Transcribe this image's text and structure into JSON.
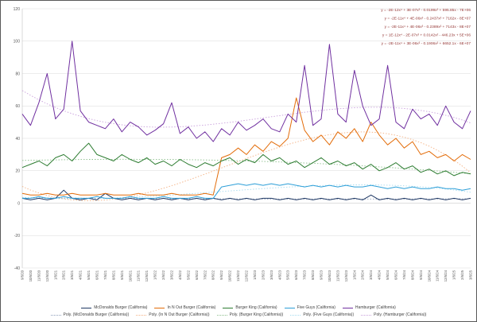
{
  "chart_data": {
    "type": "line",
    "title": "",
    "ylim": [
      -40,
      120
    ],
    "ytick_step": 20,
    "grid": true,
    "legend_position": "bottom",
    "equations_color": "#943634",
    "equations": [
      "y = -2E-12x⁴ + 3E-07x³ - 0.0199x² + 595.85x - 7E+06",
      "y = -2E-11x⁴ + 4E-06x³ - 0.2437x² + 7162x - 8E+07",
      "y = -2E-11x⁴ + 4E-06x³ - 0.2389x² + 7143x - 8E+07",
      "y = 1E-12x⁴ - 2E-07x³ + 0.0142x² - 446.23x + 5E+06",
      "y = -2E-11x⁴ + 3E-06x³ - 0.1906x² + 6652.1x - 6E+07"
    ],
    "categories": [
      "9/6/20",
      "10/6/20",
      "11/6/20",
      "12/6/20",
      "1/6/21",
      "2/6/21",
      "3/6/21",
      "4/6/21",
      "5/6/21",
      "6/6/21",
      "7/6/21",
      "8/6/21",
      "9/6/21",
      "10/6/21",
      "11/6/21",
      "12/6/21",
      "1/6/22",
      "2/6/22",
      "3/6/22",
      "4/6/22",
      "5/6/22",
      "6/6/22",
      "7/6/22",
      "8/6/22",
      "9/6/22",
      "10/6/22",
      "11/6/22",
      "12/6/22",
      "1/6/23",
      "2/6/23",
      "3/6/23",
      "4/6/23",
      "5/6/23",
      "6/6/23",
      "7/6/23",
      "8/6/23",
      "9/6/23",
      "10/6/23",
      "11/6/23",
      "12/6/23",
      "1/6/24",
      "2/6/24",
      "3/6/24",
      "4/6/24",
      "5/6/24",
      "6/6/24",
      "7/6/24",
      "8/6/24",
      "9/6/24",
      "10/6/24",
      "11/6/24",
      "12/6/24",
      "1/6/25",
      "2/6/25",
      "3/6/25"
    ],
    "series": [
      {
        "name": "McDonalds Burger (California)",
        "color": "#1F3864",
        "values": [
          3,
          2,
          3,
          2,
          3,
          8,
          3,
          2,
          3,
          2,
          6,
          3,
          2,
          3,
          2,
          3,
          2,
          3,
          2,
          3,
          2,
          3,
          2,
          3,
          2,
          3,
          2,
          3,
          2,
          3,
          3,
          2,
          3,
          2,
          3,
          2,
          3,
          2,
          3,
          2,
          3,
          2,
          5,
          2,
          3,
          2,
          3,
          2,
          3,
          2,
          3,
          2,
          3,
          2,
          3
        ]
      },
      {
        "name": "In N Out Burger (California)",
        "color": "#E36C09",
        "values": [
          6,
          5,
          5,
          6,
          5,
          5,
          6,
          5,
          5,
          5,
          6,
          5,
          5,
          5,
          6,
          5,
          5,
          5,
          6,
          5,
          5,
          5,
          6,
          5,
          28,
          30,
          34,
          30,
          36,
          32,
          38,
          35,
          40,
          65,
          45,
          38,
          42,
          36,
          44,
          40,
          46,
          38,
          50,
          42,
          36,
          40,
          34,
          38,
          30,
          32,
          28,
          30,
          26,
          30,
          27
        ]
      },
      {
        "name": "Burger King (California)",
        "color": "#2E7D32",
        "values": [
          22,
          24,
          26,
          23,
          28,
          30,
          26,
          32,
          37,
          30,
          28,
          26,
          30,
          27,
          25,
          28,
          24,
          26,
          23,
          27,
          24,
          22,
          25,
          23,
          26,
          28,
          24,
          27,
          25,
          30,
          26,
          28,
          24,
          26,
          22,
          25,
          28,
          24,
          26,
          23,
          25,
          21,
          24,
          20,
          22,
          25,
          21,
          23,
          19,
          21,
          18,
          20,
          17,
          19,
          18
        ]
      },
      {
        "name": "Five Guys (California)",
        "color": "#2E9FD8",
        "values": [
          3,
          3,
          4,
          3,
          3,
          4,
          3,
          3,
          3,
          4,
          3,
          3,
          3,
          4,
          3,
          3,
          3,
          4,
          3,
          3,
          3,
          4,
          3,
          3,
          10,
          11,
          12,
          11,
          12,
          11,
          12,
          11,
          12,
          11,
          10,
          11,
          10,
          11,
          10,
          11,
          10,
          10,
          11,
          10,
          9,
          10,
          9,
          10,
          9,
          9,
          10,
          9,
          9,
          8,
          9
        ]
      },
      {
        "name": "Hamburger (California)",
        "color": "#7030A0",
        "values": [
          55,
          48,
          62,
          80,
          52,
          58,
          100,
          57,
          50,
          48,
          46,
          52,
          44,
          50,
          47,
          42,
          45,
          49,
          62,
          43,
          47,
          40,
          44,
          38,
          46,
          42,
          50,
          45,
          48,
          52,
          46,
          44,
          55,
          50,
          85,
          48,
          52,
          98,
          55,
          50,
          82,
          60,
          48,
          52,
          85,
          50,
          46,
          58,
          52,
          55,
          48,
          60,
          50,
          46,
          57
        ]
      }
    ],
    "trendlines": [
      {
        "name": "Poly. (McDonalds Burger (California))",
        "series": 0,
        "color": "#8C9CB8"
      },
      {
        "name": "Poly. (In N Out Burger (California))",
        "series": 1,
        "color": "#F4B183"
      },
      {
        "name": "Poly. (Burger King (California))",
        "series": 2,
        "color": "#8CBF8C"
      },
      {
        "name": "Poly. (Five Guys (California))",
        "series": 3,
        "color": "#A6DBF0"
      },
      {
        "name": "Poly. (Hamburger (California))",
        "series": 4,
        "color": "#C9A0DC"
      }
    ],
    "yticks": [
      -40,
      -20,
      0,
      20,
      40,
      60,
      80,
      100,
      120
    ]
  }
}
